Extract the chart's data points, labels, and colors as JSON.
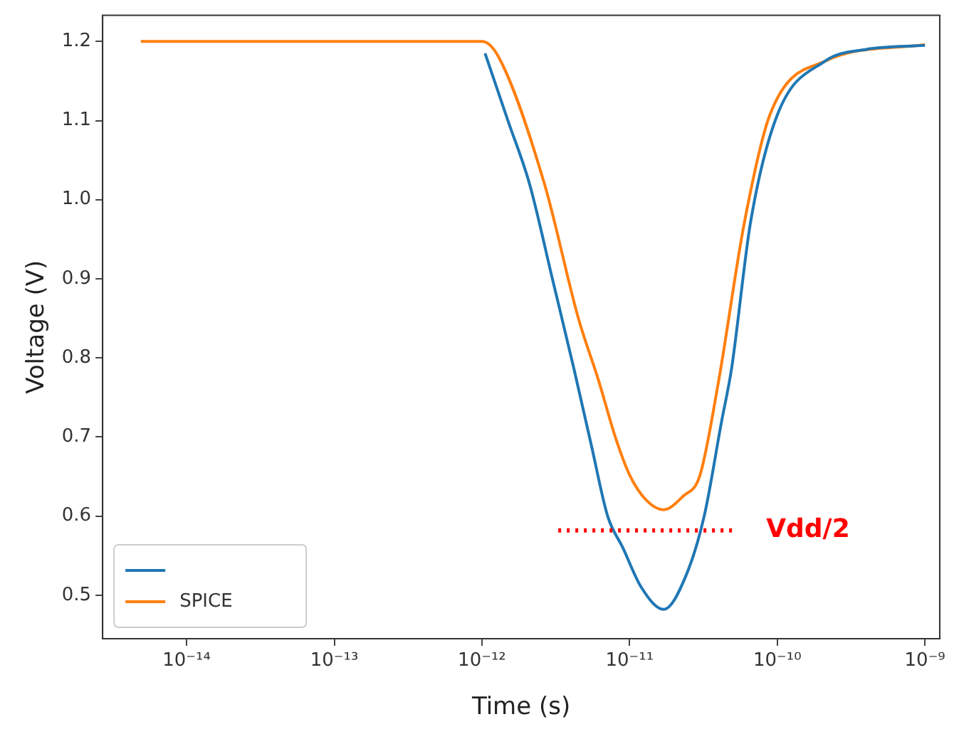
{
  "chart_data": {
    "type": "line",
    "xlabel": "Time (s)",
    "ylabel": "Voltage (V)",
    "log": "x",
    "grid": false,
    "legend": "bottom left",
    "marker": "none",
    "line_style": "solid",
    "xlim": [
      2.7e-15,
      1.26e-09
    ],
    "ylim": [
      0.445,
      1.233
    ],
    "xticks": [
      {
        "value": 1e-14,
        "label": "10⁻¹⁴"
      },
      {
        "value": 1e-13,
        "label": "10⁻¹³"
      },
      {
        "value": 1e-12,
        "label": "10⁻¹²"
      },
      {
        "value": 1e-11,
        "label": "10⁻¹¹"
      },
      {
        "value": 1e-10,
        "label": "10⁻¹⁰"
      },
      {
        "value": 1e-09,
        "label": "10⁻⁹"
      }
    ],
    "yticks": [
      0.5,
      0.6,
      0.7,
      0.8,
      0.9,
      {
        "value": 1,
        "label": "1.0"
      },
      1.1,
      1.2
    ],
    "series": [
      {
        "color": "#1f77b4",
        "x": [
          1.05e-12,
          1.5e-12,
          2.1e-12,
          3e-12,
          4.2e-12,
          5.5e-12,
          7.1e-12,
          9e-12,
          1.2e-11,
          1.7e-11,
          2.4e-11,
          3.2e-11,
          4.2e-11,
          4.9e-11,
          6.6e-11,
          1e-10,
          2.1e-10,
          4e-10,
          1e-09
        ],
        "values": [
          1.185,
          1.1,
          1.02,
          0.9,
          0.786,
          0.69,
          0.6,
          0.56,
          0.51,
          0.482,
          0.524,
          0.6,
          0.72,
          0.786,
          0.972,
          1.107,
          1.175,
          1.19,
          1.195
        ]
      },
      {
        "name": "SPICE",
        "color": "#ff7f0e",
        "x": [
          4.9e-15,
          1e-12,
          1.3e-12,
          2.65e-12,
          4.5e-12,
          6.2e-12,
          8e-12,
          1e-11,
          1.3e-11,
          1.7e-11,
          2.3e-11,
          3e-11,
          4e-11,
          6e-11,
          8.9e-11,
          2.1e-10,
          1e-09
        ],
        "values": [
          1.2,
          1.2,
          1.18,
          1.02,
          0.85,
          0.77,
          0.7,
          0.652,
          0.62,
          0.608,
          0.625,
          0.652,
          0.77,
          0.972,
          1.107,
          1.175,
          1.196
        ]
      }
    ],
    "ref_lines": [
      {
        "axis": "y",
        "value": 0.582,
        "label": "Vdd/2",
        "color": "#ff0000",
        "line_style": "dotted"
      }
    ]
  }
}
